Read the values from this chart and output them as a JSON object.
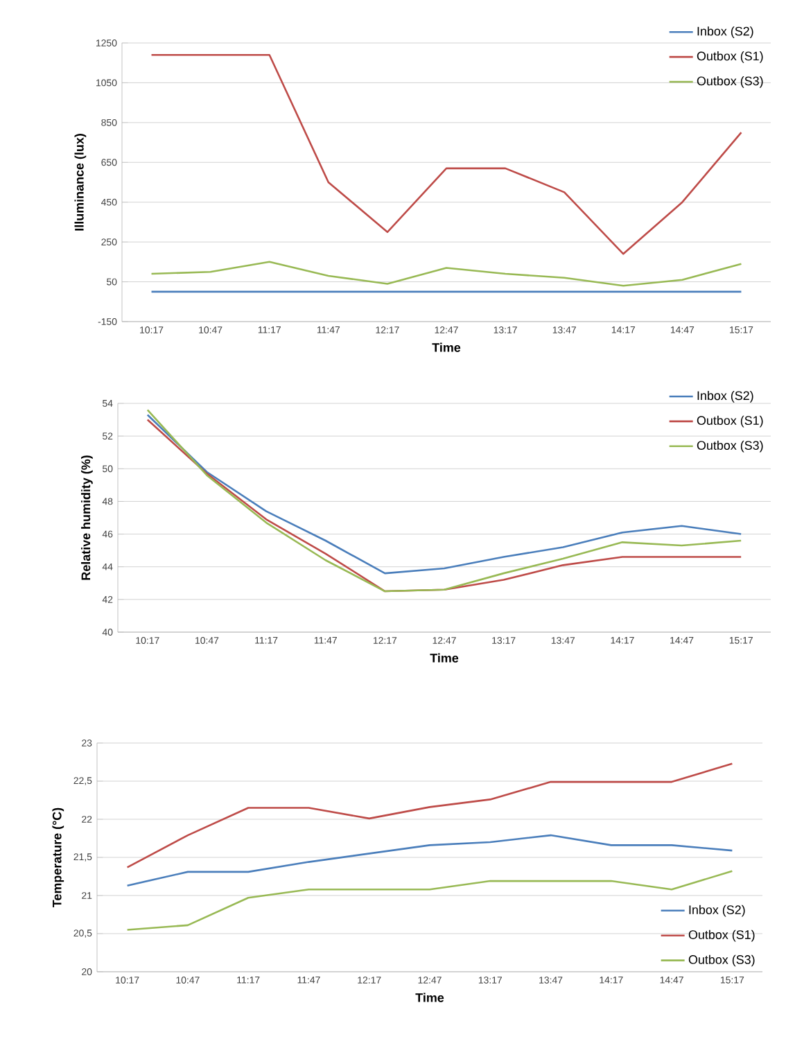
{
  "chart_data": [
    {
      "type": "line",
      "categories": [
        "10:17",
        "10:47",
        "11:17",
        "11:47",
        "12:17",
        "12:47",
        "13:17",
        "13:47",
        "14:17",
        "14:47",
        "15:17"
      ],
      "xlabel": "Time",
      "ylabel": "Illuminance (lux)",
      "ylim": [
        -150,
        1250
      ],
      "yticks": [
        -150,
        50,
        250,
        450,
        650,
        850,
        1050,
        1250
      ],
      "grid": "y",
      "legend": "top right",
      "series": [
        {
          "name": "Inbox (S2)",
          "color": "#4a7ebb",
          "values": [
            0,
            0,
            0,
            0,
            0,
            0,
            0,
            0,
            0,
            0,
            0
          ]
        },
        {
          "name": "Outbox (S1)",
          "color": "#be4b48",
          "values": [
            1190,
            1190,
            1190,
            550,
            300,
            620,
            620,
            500,
            190,
            450,
            800
          ]
        },
        {
          "name": "Outbox (S3)",
          "color": "#98b954",
          "values": [
            90,
            100,
            150,
            80,
            40,
            120,
            90,
            70,
            30,
            60,
            140
          ]
        }
      ]
    },
    {
      "type": "line",
      "categories": [
        "10:17",
        "10:47",
        "11:17",
        "11:47",
        "12:17",
        "12:47",
        "13:17",
        "13:47",
        "14:17",
        "14:47",
        "15:17"
      ],
      "xlabel": "Time",
      "ylabel": "Relative humidity (%)",
      "ylim": [
        40,
        54
      ],
      "yticks": [
        40,
        42,
        44,
        46,
        48,
        50,
        52,
        54
      ],
      "grid": "y",
      "legend": "top right",
      "series": [
        {
          "name": "Inbox (S2)",
          "color": "#4a7ebb",
          "values": [
            53.3,
            49.8,
            47.4,
            45.6,
            43.6,
            43.9,
            44.6,
            45.2,
            46.1,
            46.5,
            46.0
          ]
        },
        {
          "name": "Outbox (S1)",
          "color": "#be4b48",
          "values": [
            53.0,
            49.7,
            46.9,
            44.8,
            42.5,
            42.6,
            43.2,
            44.1,
            44.6,
            44.6,
            44.6
          ]
        },
        {
          "name": "Outbox (S3)",
          "color": "#98b954",
          "values": [
            53.6,
            49.6,
            46.7,
            44.4,
            42.5,
            42.6,
            43.6,
            44.5,
            45.5,
            45.3,
            45.6
          ]
        }
      ]
    },
    {
      "type": "line",
      "categories": [
        "10:17",
        "10:47",
        "11:17",
        "11:47",
        "12:17",
        "12:47",
        "13:17",
        "13:47",
        "14:17",
        "14:47",
        "15:17"
      ],
      "xlabel": "Time",
      "ylabel": "Temperature (°C)",
      "ylim": [
        20,
        23
      ],
      "yticks": [
        20,
        {
          "value": 20.5,
          "label": "20,5"
        },
        21,
        {
          "value": 21.5,
          "label": "21,5"
        },
        22,
        {
          "value": 22.5,
          "label": "22,5"
        },
        23
      ],
      "grid": "y",
      "legend": "bottom right",
      "series": [
        {
          "name": "Inbox (S2)",
          "color": "#4a7ebb",
          "values": [
            21.13,
            21.31,
            21.31,
            21.44,
            21.55,
            21.66,
            21.7,
            21.79,
            21.66,
            21.66,
            21.59
          ]
        },
        {
          "name": "Outbox (S1)",
          "color": "#be4b48",
          "values": [
            21.37,
            21.79,
            22.15,
            22.15,
            22.01,
            22.16,
            22.26,
            22.49,
            22.49,
            22.49,
            22.73
          ]
        },
        {
          "name": "Outbox (S3)",
          "color": "#98b954",
          "values": [
            20.55,
            20.61,
            20.97,
            21.08,
            21.08,
            21.08,
            21.19,
            21.19,
            21.19,
            21.08,
            21.32
          ]
        }
      ]
    }
  ]
}
